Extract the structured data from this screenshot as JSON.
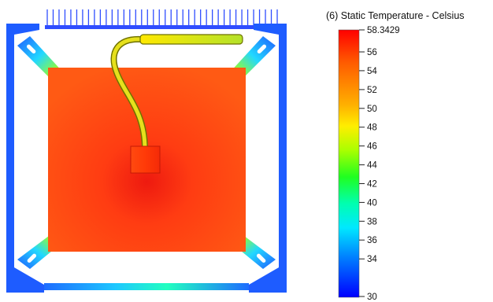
{
  "legend": {
    "title": "(6) Static Temperature - Celsius",
    "max_label": "58.3429",
    "min_label": "30",
    "max_value": 58.3429,
    "min_value": 30,
    "ticks": [
      {
        "label": "56",
        "value": 56
      },
      {
        "label": "54",
        "value": 54
      },
      {
        "label": "52",
        "value": 52
      },
      {
        "label": "50",
        "value": 50
      },
      {
        "label": "48",
        "value": 48
      },
      {
        "label": "46",
        "value": 46
      },
      {
        "label": "44",
        "value": 44
      },
      {
        "label": "42",
        "value": 42
      },
      {
        "label": "40",
        "value": 40
      },
      {
        "label": "38",
        "value": 38
      },
      {
        "label": "36",
        "value": 36
      },
      {
        "label": "34",
        "value": 34
      }
    ],
    "gradient_colors": [
      "#ff0000",
      "#ff6a00",
      "#ffaa00",
      "#ffff00",
      "#7fff00",
      "#00ff00",
      "#00ffaa",
      "#00ffff",
      "#0099ff",
      "#0000ff"
    ]
  },
  "colors": {
    "board": "#ff4a12",
    "board_center": "#ee1c10",
    "frame": "#1e5cff",
    "fins": "#2f4dff",
    "heat_pipe": "#d6df22",
    "heat_pipe_outline": "#7a7d00"
  }
}
